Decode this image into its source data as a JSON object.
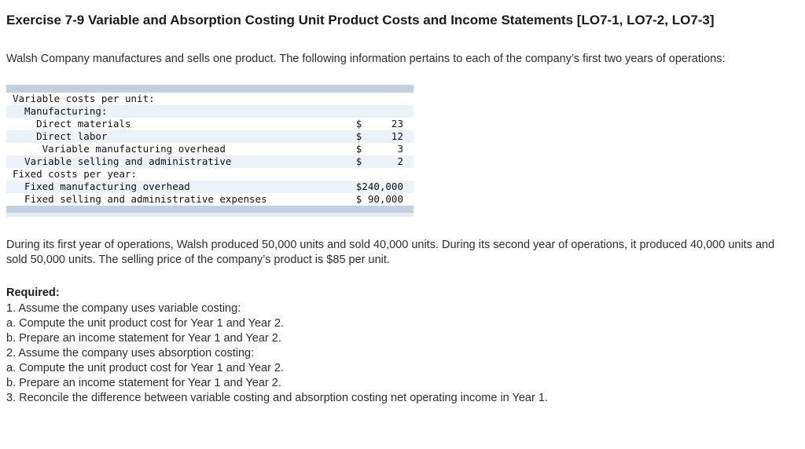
{
  "title": "Exercise 7-9 Variable and Absorption Costing Unit Product Costs and Income Statements [LO7-1, LO7-2, LO7-3]",
  "intro": "Walsh Company manufactures and sells one product. The following information pertains to each of the company’s first two years of operations:",
  "cost_table": {
    "rows": [
      {
        "label": "Variable costs per unit:",
        "amount": ""
      },
      {
        "label": "  Manufacturing:",
        "amount": ""
      },
      {
        "label": "    Direct materials",
        "amount": "$     23"
      },
      {
        "label": "    Direct labor",
        "amount": "$     12"
      },
      {
        "label": "     Variable manufacturing overhead",
        "amount": "$      3"
      },
      {
        "label": "  Variable selling and administrative",
        "amount": "$      2"
      },
      {
        "label": "Fixed costs per year:",
        "amount": ""
      },
      {
        "label": "  Fixed manufacturing overhead",
        "amount": "$240,000"
      },
      {
        "label": "  Fixed selling and administrative expenses",
        "amount": "$ 90,000"
      }
    ],
    "colors": {
      "band": "#c2d0df",
      "stripe": "#edf2f8"
    }
  },
  "narrative": "During its first year of operations, Walsh produced 50,000 units and sold 40,000 units. During its second year of operations, it produced 40,000 units and sold 50,000 units. The selling price of the company’s product is $85 per unit.",
  "required": {
    "heading": "Required:",
    "items": [
      "1. Assume the company uses variable costing:",
      "a. Compute the unit product cost for Year 1 and Year 2.",
      "b. Prepare an income statement for Year 1 and Year 2.",
      "2. Assume the company uses absorption costing:",
      "a. Compute the unit product cost for Year 1 and Year 2.",
      "b. Prepare an income statement for Year 1 and Year 2.",
      "3. Reconcile the difference between variable costing and absorption costing net operating income in Year 1."
    ]
  }
}
